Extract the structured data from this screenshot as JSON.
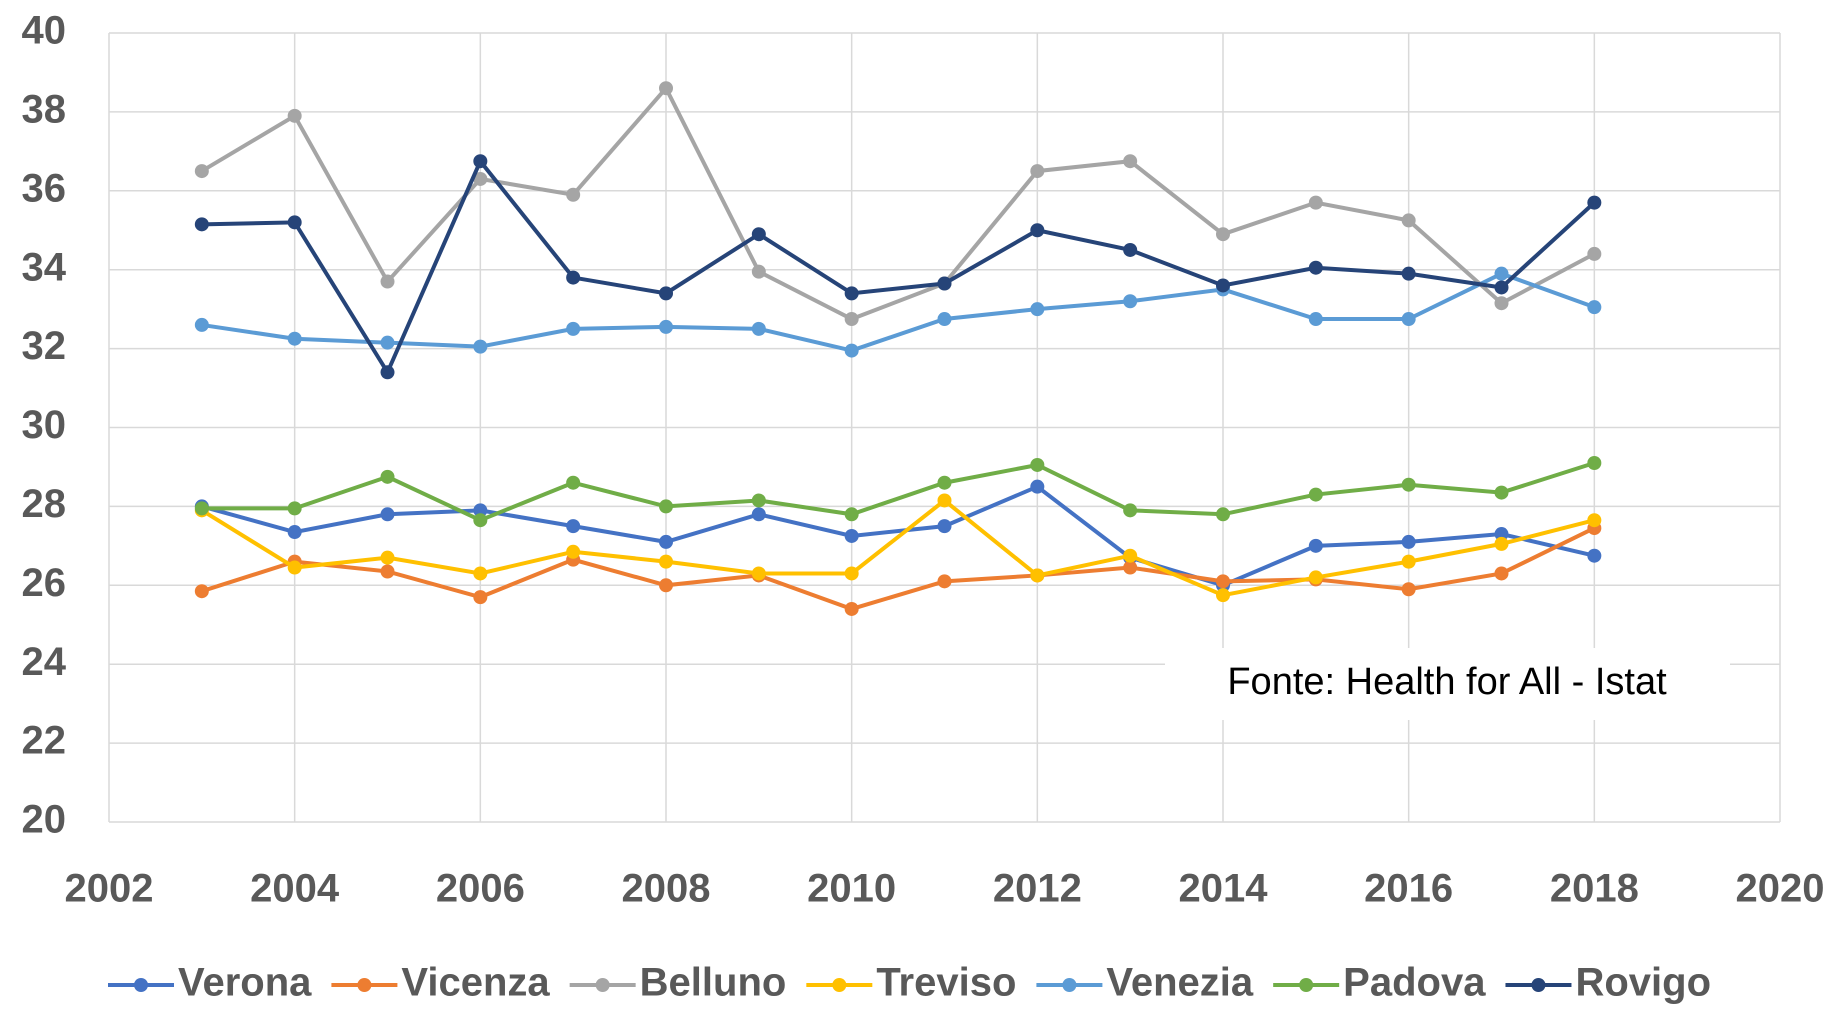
{
  "chart_data": {
    "type": "line",
    "x": [
      2003,
      2004,
      2005,
      2006,
      2007,
      2008,
      2009,
      2010,
      2011,
      2012,
      2013,
      2014,
      2015,
      2016,
      2017,
      2018
    ],
    "series": [
      {
        "name": "Verona",
        "color": "#4472c4",
        "values": [
          28.0,
          27.35,
          27.8,
          27.9,
          27.5,
          27.1,
          27.8,
          27.25,
          27.5,
          28.5,
          26.7,
          26.0,
          27.0,
          27.1,
          27.3,
          26.75
        ]
      },
      {
        "name": "Vicenza",
        "color": "#ed7d31",
        "values": [
          25.85,
          26.6,
          26.35,
          25.7,
          26.65,
          26.0,
          26.25,
          25.4,
          26.1,
          26.25,
          26.45,
          26.1,
          26.15,
          25.9,
          26.3,
          27.45
        ]
      },
      {
        "name": "Belluno",
        "color": "#a5a5a5",
        "values": [
          36.5,
          37.9,
          33.7,
          36.3,
          35.9,
          38.6,
          33.95,
          32.75,
          33.65,
          36.5,
          36.75,
          34.9,
          35.7,
          35.25,
          33.15,
          34.4
        ]
      },
      {
        "name": "Treviso",
        "color": "#ffc000",
        "values": [
          27.9,
          26.45,
          26.7,
          26.3,
          26.85,
          26.6,
          26.3,
          26.3,
          28.15,
          26.25,
          26.75,
          25.75,
          26.2,
          26.6,
          27.05,
          27.65
        ]
      },
      {
        "name": "Venezia",
        "color": "#5b9bd5",
        "values": [
          32.6,
          32.25,
          32.15,
          32.05,
          32.5,
          32.55,
          32.5,
          31.95,
          32.75,
          33.0,
          33.2,
          33.5,
          32.75,
          32.75,
          33.9,
          33.05
        ]
      },
      {
        "name": "Padova",
        "color": "#70ad47",
        "values": [
          27.95,
          27.95,
          28.75,
          27.65,
          28.6,
          28.0,
          28.15,
          27.8,
          28.6,
          29.05,
          27.9,
          27.8,
          28.3,
          28.55,
          28.35,
          29.1
        ]
      },
      {
        "name": "Rovigo",
        "color": "#264478",
        "values": [
          35.15,
          35.2,
          31.4,
          36.75,
          33.8,
          33.4,
          34.9,
          33.4,
          33.65,
          35.0,
          34.5,
          33.6,
          34.05,
          33.9,
          33.55,
          35.7
        ]
      }
    ],
    "xlim": [
      2002,
      2020
    ],
    "xticks": [
      2002,
      2004,
      2006,
      2008,
      2010,
      2012,
      2014,
      2016,
      2018,
      2020
    ],
    "ylim": [
      20,
      40
    ],
    "yticks": [
      20,
      22,
      24,
      26,
      28,
      30,
      32,
      34,
      36,
      38,
      40
    ],
    "grid": true,
    "legend": "bottom",
    "annotation": "Fonte: Health for All - Istat"
  }
}
